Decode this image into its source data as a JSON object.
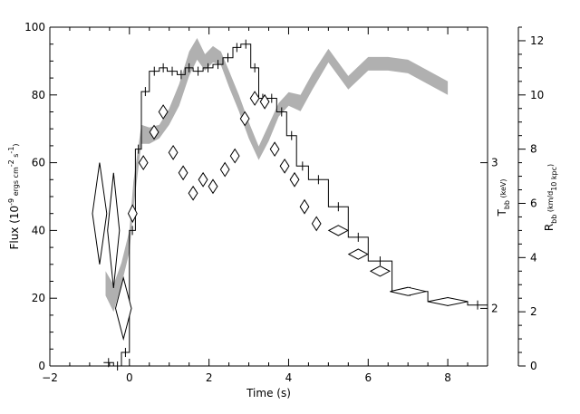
{
  "chart_data": {
    "type": "line",
    "xlabel": "Time (s)",
    "xlim": [
      -2,
      9
    ],
    "x_ticks": [
      -2,
      0,
      2,
      4,
      6,
      8
    ],
    "y_left": {
      "label": "Flux (10⁻⁹ ergs cm⁻² s⁻¹)",
      "label_parts": {
        "base": "Flux (10",
        "exp1": "-9",
        "mid": " ergs cm",
        "exp2": "-2",
        "mid2": " s",
        "exp3": "-1",
        "end": ")"
      },
      "lim": [
        0,
        100
      ],
      "ticks": [
        0,
        20,
        40,
        60,
        80,
        100
      ]
    },
    "y_right_temp": {
      "label": "T_bb (keV)",
      "label_main": "T",
      "label_sub": "bb",
      "label_rest": " (keV)",
      "ticks": [
        {
          "label": "2",
          "y_flux": 17
        },
        {
          "label": "3",
          "y_flux": 60
        }
      ]
    },
    "y_right_radius": {
      "label": "R_bb (km/d_10 kpc)",
      "label_main": "R",
      "label_sub": "bb",
      "label_rest": " (km/d",
      "label_sub2": "10 kpc",
      "label_end": ")",
      "lim": [
        0,
        12.5
      ],
      "ticks": [
        0,
        2,
        4,
        6,
        8,
        10,
        12
      ]
    },
    "series": [
      {
        "kind": "flux-histogram",
        "edges": [
          -0.65,
          -0.4,
          -0.2,
          0.0,
          0.15,
          0.3,
          0.5,
          0.75,
          0.95,
          1.2,
          1.4,
          1.6,
          1.85,
          2.1,
          2.35,
          2.6,
          2.8,
          3.05,
          3.25,
          3.45,
          3.7,
          3.95,
          4.2,
          4.5,
          5.0,
          5.5,
          6.0,
          6.6,
          7.5,
          8.5,
          9.0
        ],
        "values": [
          1,
          0,
          4,
          40,
          64,
          81,
          87,
          88,
          87,
          86,
          88,
          87,
          88,
          89,
          91,
          94,
          95,
          88,
          79,
          79,
          75,
          68,
          59,
          55,
          47,
          38,
          31,
          22,
          19,
          18
        ]
      },
      {
        "kind": "temperature-diamonds",
        "points": [
          {
            "t": -0.75,
            "flux": 45,
            "dx": 0.18,
            "dy": 15
          },
          {
            "t": -0.4,
            "flux": 40,
            "dx": 0.15,
            "dy": 17
          },
          {
            "t": -0.15,
            "flux": 17,
            "dx": 0.2,
            "dy": 9
          },
          {
            "t": 0.08,
            "flux": 45,
            "dx": 0.11,
            "dy": 2.5
          },
          {
            "t": 0.35,
            "flux": 60,
            "dx": 0.11,
            "dy": 2
          },
          {
            "t": 0.62,
            "flux": 69,
            "dx": 0.11,
            "dy": 2
          },
          {
            "t": 0.85,
            "flux": 75,
            "dx": 0.11,
            "dy": 2
          },
          {
            "t": 1.1,
            "flux": 63,
            "dx": 0.11,
            "dy": 2
          },
          {
            "t": 1.35,
            "flux": 57,
            "dx": 0.11,
            "dy": 2
          },
          {
            "t": 1.6,
            "flux": 51,
            "dx": 0.11,
            "dy": 2
          },
          {
            "t": 1.85,
            "flux": 55,
            "dx": 0.11,
            "dy": 2
          },
          {
            "t": 2.1,
            "flux": 53,
            "dx": 0.11,
            "dy": 2
          },
          {
            "t": 2.4,
            "flux": 58,
            "dx": 0.11,
            "dy": 2
          },
          {
            "t": 2.65,
            "flux": 62,
            "dx": 0.11,
            "dy": 2
          },
          {
            "t": 2.9,
            "flux": 73,
            "dx": 0.11,
            "dy": 2
          },
          {
            "t": 3.15,
            "flux": 79,
            "dx": 0.11,
            "dy": 2
          },
          {
            "t": 3.4,
            "flux": 78,
            "dx": 0.11,
            "dy": 2
          },
          {
            "t": 3.65,
            "flux": 64,
            "dx": 0.11,
            "dy": 2
          },
          {
            "t": 3.9,
            "flux": 59,
            "dx": 0.11,
            "dy": 2
          },
          {
            "t": 4.15,
            "flux": 55,
            "dx": 0.11,
            "dy": 2
          },
          {
            "t": 4.4,
            "flux": 47,
            "dx": 0.11,
            "dy": 2
          },
          {
            "t": 4.7,
            "flux": 42,
            "dx": 0.11,
            "dy": 2
          },
          {
            "t": 5.25,
            "flux": 40,
            "dx": 0.24,
            "dy": 1.5
          },
          {
            "t": 5.75,
            "flux": 33,
            "dx": 0.24,
            "dy": 1.5
          },
          {
            "t": 6.3,
            "flux": 28,
            "dx": 0.24,
            "dy": 1.5
          },
          {
            "t": 7.0,
            "flux": 22,
            "dx": 0.45,
            "dy": 1.2
          },
          {
            "t": 8.0,
            "flux": 19,
            "dx": 0.5,
            "dy": 1.2
          }
        ]
      },
      {
        "kind": "radius-band",
        "t": [
          -0.6,
          -0.4,
          -0.2,
          0.0,
          0.1,
          0.3,
          0.5,
          0.75,
          1.0,
          1.25,
          1.5,
          1.7,
          1.9,
          2.1,
          2.3,
          2.5,
          2.75,
          3.0,
          3.25,
          3.5,
          3.75,
          4.0,
          4.3,
          4.6,
          5.0,
          5.5,
          6.0,
          6.5,
          7.0,
          8.0
        ],
        "lower": [
          2.6,
          2.0,
          3.0,
          4.2,
          5.8,
          8.2,
          8.2,
          8.4,
          8.9,
          9.6,
          10.7,
          11.3,
          10.9,
          11.2,
          11.1,
          10.3,
          9.4,
          8.4,
          7.6,
          8.3,
          9.2,
          9.6,
          9.4,
          10.2,
          11.2,
          10.2,
          10.9,
          10.9,
          10.8,
          10.0
        ],
        "upper": [
          3.5,
          3.0,
          3.8,
          5.0,
          6.8,
          8.9,
          8.8,
          8.9,
          9.5,
          10.4,
          11.6,
          12.1,
          11.5,
          11.8,
          11.6,
          10.9,
          10.0,
          9.0,
          8.1,
          8.9,
          9.7,
          10.1,
          10.0,
          10.8,
          11.7,
          10.7,
          11.4,
          11.4,
          11.3,
          10.5
        ]
      }
    ],
    "grid": false,
    "colors": {
      "band": "#b0b0b0",
      "line": "#000000"
    }
  }
}
